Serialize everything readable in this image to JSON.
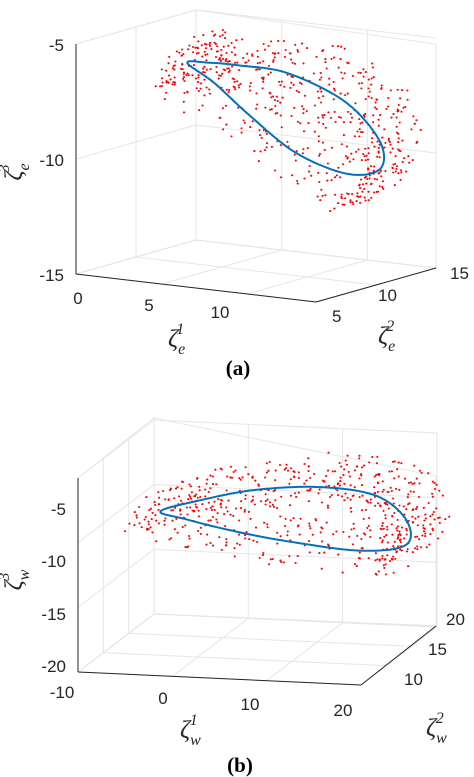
{
  "chart_data": [
    {
      "type": "scatter",
      "caption": "(a)",
      "xlabel": {
        "base": "ζ",
        "sub": "e",
        "sup": "1"
      },
      "ylabel": {
        "base": "ζ",
        "sub": "e",
        "sup": "2"
      },
      "zlabel": {
        "base": "ζ",
        "sub": "e",
        "sup": "3"
      },
      "xticks": [
        "0",
        "5",
        "10"
      ],
      "yticks": [
        "5",
        "10",
        "15"
      ],
      "zticks": [
        "-5",
        "-10",
        "-15"
      ],
      "xlim": [
        0,
        14
      ],
      "ylim": [
        5,
        15
      ],
      "zlim": [
        -15,
        -5
      ],
      "grid": true,
      "series": [
        {
          "kind": "points",
          "color": "#ff0000",
          "loop_x": [
            3,
            6,
            10,
            13,
            11,
            7,
            3
          ],
          "loop_y": [
            10,
            9,
            11,
            12,
            14,
            13,
            10
          ],
          "loop_z": [
            -6.3,
            -6,
            -6.5,
            -8.5,
            -11.6,
            -9.5,
            -6.3
          ]
        },
        {
          "kind": "line",
          "color": "#0072bd",
          "x": [
            3.0,
            4.5,
            6.5,
            9.0,
            11.5,
            12.6,
            12.0,
            10.0,
            7.5,
            5.5,
            4.0,
            3.0
          ],
          "y": [
            10.0,
            9.6,
            9.3,
            9.8,
            11.0,
            12.3,
            13.2,
            13.3,
            12.6,
            11.6,
            10.8,
            10.0
          ],
          "z": [
            -6.3,
            -6.1,
            -6.0,
            -6.2,
            -7.4,
            -9.2,
            -10.6,
            -11.0,
            -10.2,
            -8.6,
            -7.2,
            -6.3
          ]
        }
      ]
    },
    {
      "type": "scatter",
      "caption": "(b)",
      "xlabel": {
        "base": "ζ",
        "sub": "w",
        "sup": "1"
      },
      "ylabel": {
        "base": "ζ",
        "sub": "w",
        "sup": "2"
      },
      "zlabel": {
        "base": "ζ",
        "sub": "w",
        "sup": "3"
      },
      "xticks": [
        "-10",
        "0",
        "10",
        "20"
      ],
      "yticks": [
        "10",
        "15",
        "20"
      ],
      "zticks": [
        "-5",
        "-10",
        "-15",
        "-20"
      ],
      "xlim": [
        -10,
        20
      ],
      "ylim": [
        5,
        20
      ],
      "zlim": [
        -20,
        -5
      ],
      "grid": true,
      "series": [
        {
          "kind": "points",
          "color": "#ff0000",
          "loop_x": [
            -5,
            5,
            15,
            20,
            17,
            5,
            -5
          ],
          "loop_y": [
            12,
            11,
            12,
            14,
            18,
            16,
            12
          ],
          "loop_z": [
            -9.5,
            -7,
            -6.5,
            -9,
            -13.5,
            -12,
            -9.5
          ]
        },
        {
          "kind": "line",
          "color": "#0072bd",
          "x": [
            -5.0,
            -0.5,
            5.5,
            12.0,
            17.0,
            19.0,
            18.0,
            13.0,
            6.0,
            1.0,
            -3.0,
            -5.0
          ],
          "y": [
            12.0,
            11.3,
            11.0,
            11.8,
            13.5,
            15.8,
            17.6,
            17.9,
            16.8,
            15.0,
            13.2,
            12.0
          ],
          "z": [
            -9.5,
            -8.3,
            -7.2,
            -7.0,
            -8.0,
            -10.5,
            -13.0,
            -13.7,
            -12.9,
            -11.7,
            -10.4,
            -9.5
          ]
        }
      ]
    }
  ]
}
